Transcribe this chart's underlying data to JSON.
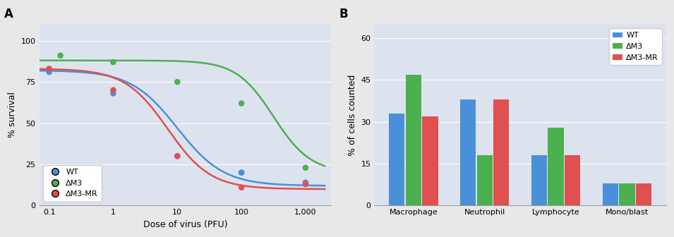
{
  "panel_A": {
    "title": "A",
    "xlabel": "Dose of virus (PFU)",
    "ylabel": "% survival",
    "ylim": [
      0,
      110
    ],
    "yticks": [
      0,
      25,
      50,
      75,
      100
    ],
    "xtick_vals": [
      0.1,
      1,
      10,
      100,
      1000
    ],
    "xtick_labels": [
      "0.1",
      "1",
      "10",
      "100",
      "1,000"
    ],
    "bg_color": "#dce3ef",
    "series": {
      "WT": {
        "color": "#4a90d9",
        "scatter_x": [
          0.1,
          1,
          10,
          100,
          100,
          1000
        ],
        "scatter_y": [
          81,
          68,
          30,
          20,
          20,
          14
        ],
        "sigmoid": {
          "top": 82,
          "bottom": 12,
          "ec50_log": 1.0,
          "hill": 1.2
        }
      },
      "dM3": {
        "color": "#4caf50",
        "scatter_x": [
          0.15,
          1,
          10,
          100,
          1000
        ],
        "scatter_y": [
          91,
          87,
          75,
          62,
          23
        ],
        "sigmoid": {
          "top": 88,
          "bottom": 20,
          "ec50_log": 2.5,
          "hill": 1.5
        }
      },
      "dM3MR": {
        "color": "#e05050",
        "scatter_x": [
          0.1,
          1,
          10,
          100,
          1000
        ],
        "scatter_y": [
          83,
          70,
          30,
          11,
          13
        ],
        "sigmoid": {
          "top": 83,
          "bottom": 10,
          "ec50_log": 0.85,
          "hill": 1.3
        }
      }
    },
    "legend": {
      "labels": [
        "WT",
        "ΔM3",
        "ΔM3-MR"
      ],
      "colors": [
        "#4a90d9",
        "#4caf50",
        "#e05050"
      ]
    }
  },
  "panel_B": {
    "title": "B",
    "xlabel": "",
    "ylabel": "% of cells counted",
    "ylim": [
      0,
      65
    ],
    "yticks": [
      0,
      15,
      30,
      45,
      60
    ],
    "categories": [
      "Macrophage",
      "Neutrophil",
      "Lymphocyte",
      "Mono/blast"
    ],
    "bg_color": "#dce3ef",
    "series": {
      "WT": [
        33,
        38,
        18,
        8
      ],
      "dM3": [
        47,
        18,
        28,
        8
      ],
      "dM3MR": [
        32,
        38,
        18,
        8
      ]
    },
    "colors": {
      "WT": "#4a90d9",
      "dM3": "#4caf50",
      "dM3MR": "#e05050"
    },
    "legend": {
      "labels": [
        "WT",
        "ΔM3",
        "ΔM3-MR"
      ],
      "colors": [
        "#4a90d9",
        "#4caf50",
        "#e05050"
      ]
    }
  }
}
